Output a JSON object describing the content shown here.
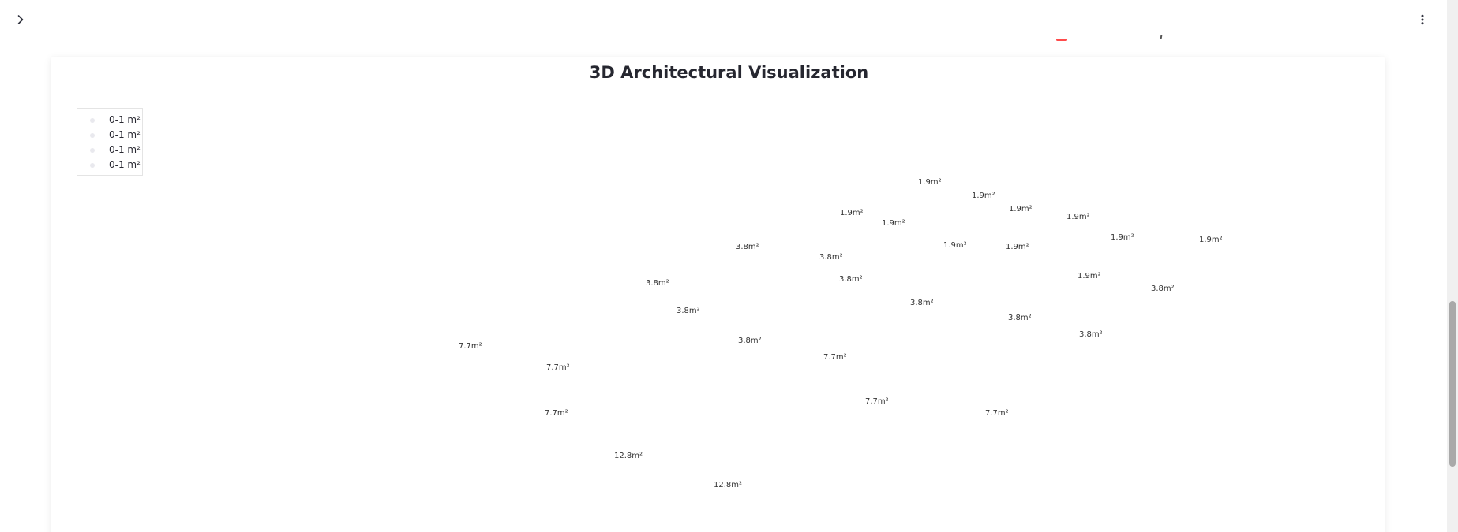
{
  "header": {
    "sidebar_toggle_icon": "chevron-right-icon",
    "menu_icon": "more-vertical-icon"
  },
  "chart": {
    "title": "3D Architectural Visualization",
    "legend": [
      {
        "label": "0-1 m²"
      },
      {
        "label": "0-1 m²"
      },
      {
        "label": "0-1 m²"
      },
      {
        "label": "0-1 m²"
      }
    ]
  },
  "chart_data": {
    "type": "scatter",
    "title": "3D Architectural Visualization",
    "legend_placement": "top-left",
    "grid": false,
    "series": [
      {
        "name": "0-1 m²",
        "values": []
      },
      {
        "name": "0-1 m²",
        "values": []
      },
      {
        "name": "0-1 m²",
        "values": []
      },
      {
        "name": "0-1 m²",
        "values": []
      }
    ],
    "annotations": [
      "1.9m²",
      "1.9m²",
      "1.9m²",
      "1.9m²",
      "1.9m²",
      "1.9m²",
      "1.9m²",
      "1.9m²",
      "1.9m²",
      "1.9m²",
      "1.9m²",
      "3.8m²",
      "3.8m²",
      "3.8m²",
      "3.8m²",
      "3.8m²",
      "3.8m²",
      "3.8m²",
      "3.8m²",
      "3.8m²",
      "3.8m²",
      "7.7m²",
      "7.7m²",
      "7.7m²",
      "7.7m²",
      "7.7m²",
      "7.7m²",
      "12.8m²",
      "12.8m²"
    ]
  }
}
